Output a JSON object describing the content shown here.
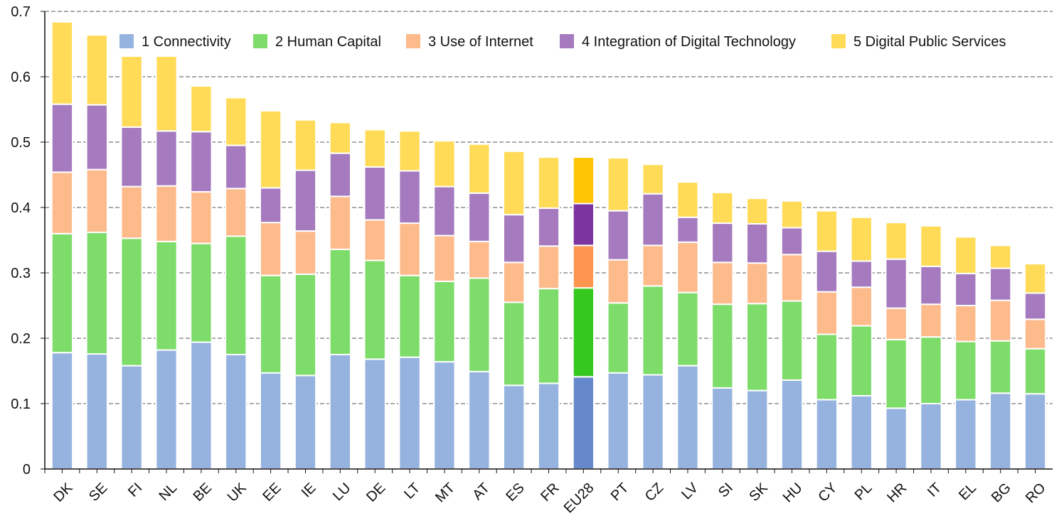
{
  "chart_data": {
    "type": "bar",
    "stacked": true,
    "ylim": [
      0,
      0.7
    ],
    "yticks": [
      0,
      0.1,
      0.2,
      0.3,
      0.4,
      0.5,
      0.6,
      0.7
    ],
    "ytick_labels": [
      "0",
      "0.1",
      "0.2",
      "0.3",
      "0.4",
      "0.5",
      "0.6",
      "0.7"
    ],
    "grid": "horizontal dashed",
    "legend_position": "top",
    "categories": [
      "DK",
      "SE",
      "FI",
      "NL",
      "BE",
      "UK",
      "EE",
      "IE",
      "LU",
      "DE",
      "LT",
      "MT",
      "AT",
      "ES",
      "FR",
      "EU28",
      "PT",
      "CZ",
      "LV",
      "SI",
      "SK",
      "HU",
      "CY",
      "PL",
      "HR",
      "IT",
      "EL",
      "BG",
      "RO"
    ],
    "highlight_category": "EU28",
    "series": [
      {
        "name": "1 Connectivity",
        "color": "#95B3DE",
        "highlight_color": "#6689CC",
        "values": [
          0.178,
          0.176,
          0.158,
          0.182,
          0.194,
          0.175,
          0.147,
          0.143,
          0.175,
          0.168,
          0.171,
          0.164,
          0.149,
          0.128,
          0.131,
          0.141,
          0.147,
          0.144,
          0.158,
          0.124,
          0.12,
          0.136,
          0.106,
          0.112,
          0.093,
          0.1,
          0.106,
          0.116,
          0.115
        ]
      },
      {
        "name": "2 Human Capital",
        "color": "#7EDC6A",
        "highlight_color": "#35C91F",
        "values": [
          0.182,
          0.186,
          0.195,
          0.166,
          0.151,
          0.181,
          0.149,
          0.155,
          0.161,
          0.151,
          0.125,
          0.123,
          0.143,
          0.127,
          0.145,
          0.136,
          0.107,
          0.136,
          0.112,
          0.128,
          0.133,
          0.121,
          0.1,
          0.107,
          0.105,
          0.102,
          0.089,
          0.08,
          0.069
        ]
      },
      {
        "name": "3 Use of Internet",
        "color": "#FDBA8B",
        "highlight_color": "#FF9650",
        "values": [
          0.094,
          0.096,
          0.079,
          0.085,
          0.079,
          0.073,
          0.081,
          0.066,
          0.081,
          0.062,
          0.08,
          0.07,
          0.056,
          0.061,
          0.065,
          0.065,
          0.066,
          0.062,
          0.077,
          0.064,
          0.062,
          0.071,
          0.065,
          0.059,
          0.048,
          0.05,
          0.055,
          0.062,
          0.045
        ]
      },
      {
        "name": "4 Integration of Digital Technology",
        "color": "#A57ABE",
        "highlight_color": "#7B34A0",
        "values": [
          0.104,
          0.099,
          0.091,
          0.084,
          0.092,
          0.066,
          0.053,
          0.093,
          0.066,
          0.081,
          0.08,
          0.075,
          0.074,
          0.073,
          0.058,
          0.064,
          0.075,
          0.079,
          0.038,
          0.06,
          0.06,
          0.041,
          0.062,
          0.04,
          0.075,
          0.058,
          0.049,
          0.049,
          0.04
        ]
      },
      {
        "name": "5 Digital Public Services",
        "color": "#FFDB58",
        "highlight_color": "#FFC505",
        "values": [
          0.126,
          0.107,
          0.113,
          0.118,
          0.07,
          0.073,
          0.118,
          0.077,
          0.047,
          0.057,
          0.061,
          0.07,
          0.075,
          0.097,
          0.078,
          0.071,
          0.081,
          0.045,
          0.054,
          0.047,
          0.039,
          0.041,
          0.062,
          0.067,
          0.056,
          0.062,
          0.056,
          0.035,
          0.045
        ]
      }
    ]
  }
}
